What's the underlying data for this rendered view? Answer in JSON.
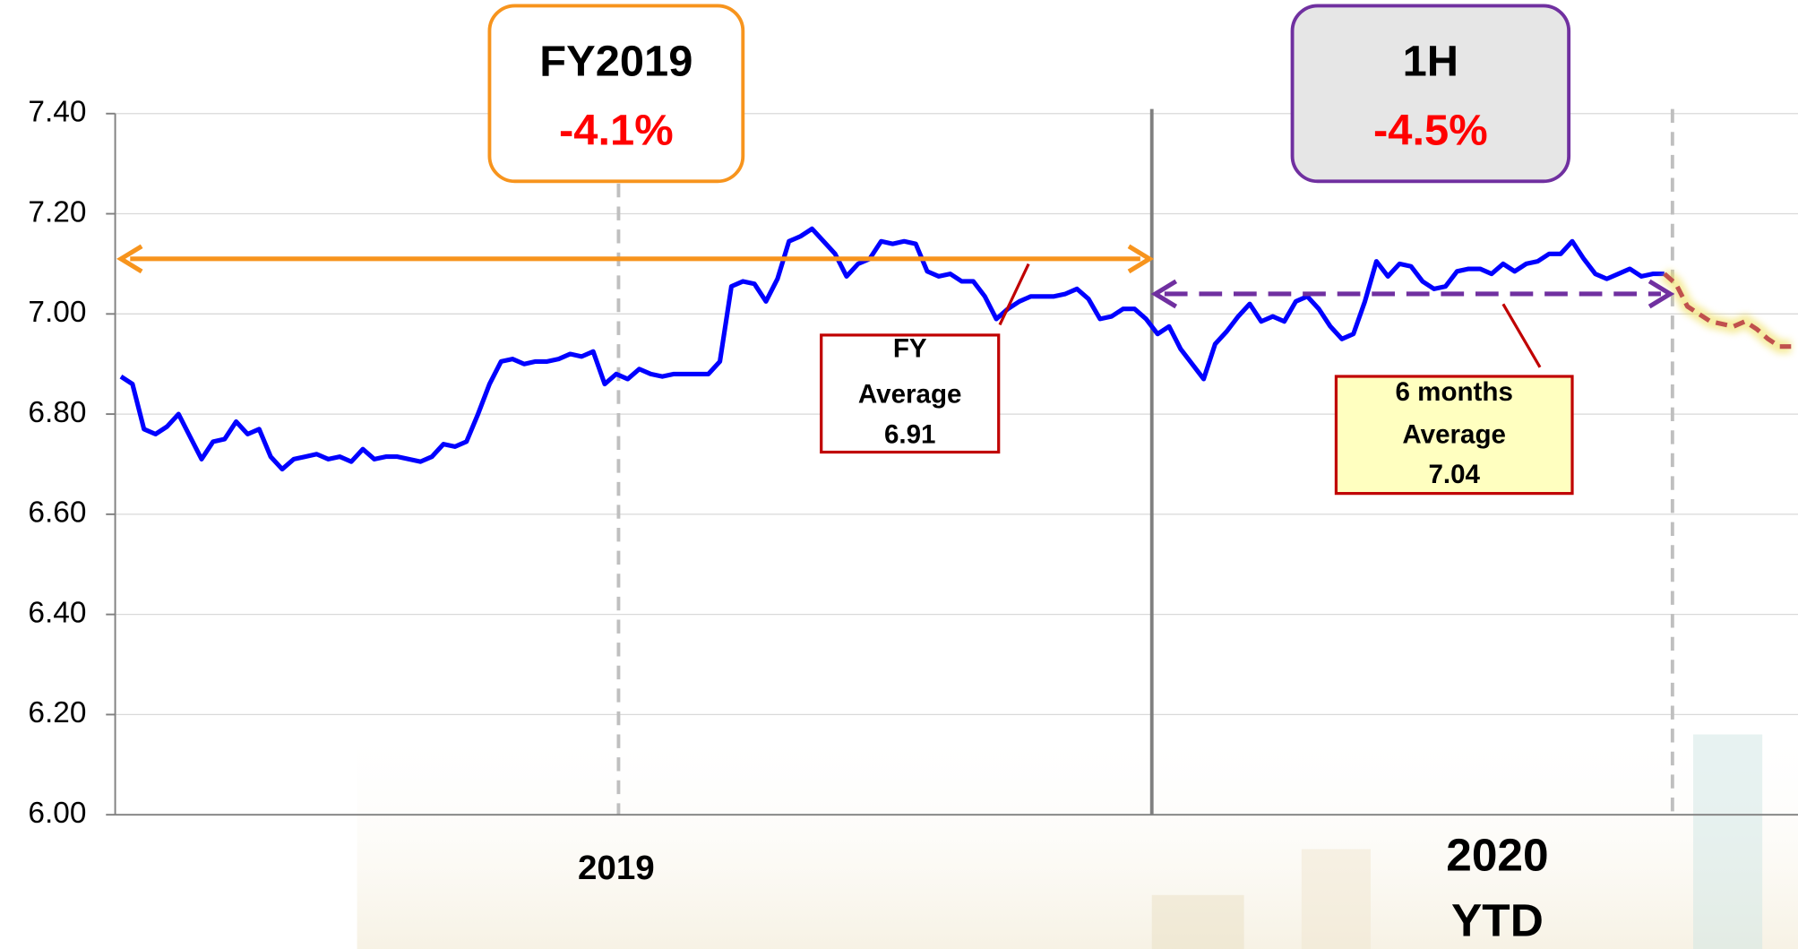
{
  "chart_data": {
    "type": "line",
    "ylim": [
      6.0,
      7.4
    ],
    "yticks": [
      {
        "value": 6.0,
        "label": "6.00"
      },
      {
        "value": 6.2,
        "label": "6.20"
      },
      {
        "value": 6.4,
        "label": "6.40"
      },
      {
        "value": 6.6,
        "label": "6.60"
      },
      {
        "value": 6.8,
        "label": "6.80"
      },
      {
        "value": 7.0,
        "label": "7.00"
      },
      {
        "value": 7.2,
        "label": "7.20"
      },
      {
        "value": 7.4,
        "label": "7.40"
      }
    ],
    "grid": true,
    "categories": [
      null,
      null,
      null,
      null,
      null,
      null,
      null,
      null,
      null,
      null,
      null,
      null,
      null,
      null,
      null,
      null,
      null,
      null,
      null,
      null,
      null,
      null,
      null,
      null,
      null,
      null,
      null,
      null,
      null,
      null,
      null,
      null,
      null,
      null,
      null,
      null,
      null,
      null,
      null,
      null,
      null,
      null,
      null,
      null,
      null,
      null,
      null,
      null,
      null,
      null,
      null,
      null,
      null,
      null,
      null,
      null,
      null,
      null,
      null,
      null,
      null,
      null,
      null,
      null,
      null,
      null,
      null,
      null,
      null,
      null,
      null,
      null,
      null,
      null,
      null,
      null,
      null,
      null,
      null,
      null,
      null,
      null,
      null,
      null,
      null,
      null,
      null,
      null,
      null,
      null,
      null,
      null,
      null,
      null,
      null,
      null,
      null,
      null,
      null,
      null,
      null,
      null,
      null,
      null,
      null,
      null,
      null,
      null,
      null,
      null,
      null,
      null,
      null,
      null,
      null,
      null,
      null,
      null,
      null,
      null,
      null,
      null,
      null,
      null,
      null,
      null,
      null,
      null,
      null,
      null,
      null,
      null,
      null,
      null,
      null,
      null,
      null,
      null,
      null,
      null,
      null,
      null,
      null,
      null,
      null,
      null
    ],
    "x_labels": [
      {
        "lines": [
          "2019"
        ]
      },
      {
        "lines": [
          "2020",
          "YTD"
        ]
      }
    ],
    "series": [
      {
        "color": "#0000ff",
        "dashed": false,
        "values": [
          6.875,
          6.86,
          6.77,
          6.76,
          6.775,
          6.8,
          6.755,
          6.71,
          6.745,
          6.75,
          6.785,
          6.76,
          6.77,
          6.715,
          6.69,
          6.71,
          6.715,
          6.72,
          6.71,
          6.715,
          6.705,
          6.73,
          6.71,
          6.715,
          6.715,
          6.71,
          6.705,
          6.715,
          6.74,
          6.735,
          6.745,
          6.8,
          6.86,
          6.905,
          6.91,
          6.9,
          6.905,
          6.905,
          6.91,
          6.92,
          6.915,
          6.925,
          6.86,
          6.88,
          6.87,
          6.89,
          6.88,
          6.875,
          6.88,
          6.88,
          6.88,
          6.88,
          6.905,
          7.055,
          7.065,
          7.06,
          7.025,
          7.07,
          7.145,
          7.155,
          7.17,
          7.145,
          7.12,
          7.075,
          7.1,
          7.11,
          7.145,
          7.14,
          7.145,
          7.14,
          7.085,
          7.075,
          7.08,
          7.065,
          7.065,
          7.035,
          6.99,
          7.01,
          7.025,
          7.035,
          7.035,
          7.035,
          7.04,
          7.05,
          7.03,
          6.99,
          6.995,
          7.01,
          7.01,
          6.99,
          6.96,
          6.975,
          6.93,
          6.9,
          6.87,
          6.94,
          6.965,
          6.995,
          7.02,
          6.985,
          6.995,
          6.985,
          7.025,
          7.035,
          7.01,
          6.975,
          6.95,
          6.96,
          7.025,
          7.105,
          7.075,
          7.1,
          7.095,
          7.065,
          7.05,
          7.055,
          7.085,
          7.09,
          7.09,
          7.08,
          7.1,
          7.085,
          7.1,
          7.105,
          7.12,
          7.12,
          7.145,
          7.11,
          7.08,
          7.07,
          7.08,
          7.09,
          7.075,
          7.08,
          7.08,
          null,
          null,
          null,
          null,
          null,
          null,
          null,
          null,
          null,
          null,
          null
        ]
      },
      {
        "color": "#c0504d",
        "dashed": true,
        "values": [
          null,
          null,
          null,
          null,
          null,
          null,
          null,
          null,
          null,
          null,
          null,
          null,
          null,
          null,
          null,
          null,
          null,
          null,
          null,
          null,
          null,
          null,
          null,
          null,
          null,
          null,
          null,
          null,
          null,
          null,
          null,
          null,
          null,
          null,
          null,
          null,
          null,
          null,
          null,
          null,
          null,
          null,
          null,
          null,
          null,
          null,
          null,
          null,
          null,
          null,
          null,
          null,
          null,
          null,
          null,
          null,
          null,
          null,
          null,
          null,
          null,
          null,
          null,
          null,
          null,
          null,
          null,
          null,
          null,
          null,
          null,
          null,
          null,
          null,
          null,
          null,
          null,
          null,
          null,
          null,
          null,
          null,
          null,
          null,
          null,
          null,
          null,
          null,
          null,
          null,
          null,
          null,
          null,
          null,
          null,
          null,
          null,
          null,
          null,
          null,
          null,
          null,
          null,
          null,
          null,
          null,
          null,
          null,
          null,
          null,
          null,
          null,
          null,
          null,
          null,
          null,
          null,
          null,
          null,
          null,
          null,
          null,
          null,
          null,
          null,
          null,
          null,
          null,
          null,
          null,
          null,
          null,
          null,
          null,
          7.08,
          7.06,
          7.015,
          7.0,
          6.985,
          6.98,
          6.975,
          6.985,
          6.97,
          6.95,
          6.935,
          6.935
        ]
      }
    ],
    "period_boxes": [
      {
        "title": "FY2019",
        "change": "-4.1%",
        "border": "#f7941d",
        "fill": "#ffffff"
      },
      {
        "title": "1H",
        "change": "-4.5%",
        "border": "#7030a0",
        "fill": "#e6e6e6"
      }
    ],
    "reference_arrows": [
      {
        "value": 7.11,
        "color": "#f7941d",
        "dashed": false
      },
      {
        "value": 7.04,
        "color": "#7030a0",
        "dashed": true
      }
    ],
    "callouts": [
      {
        "label_lines": [
          "FY",
          "Average"
        ],
        "value": 6.91,
        "fill": "#ffffff"
      },
      {
        "label_lines": [
          "6 months",
          "Average"
        ],
        "value": 7.04,
        "fill": "#ffffc0"
      }
    ]
  }
}
